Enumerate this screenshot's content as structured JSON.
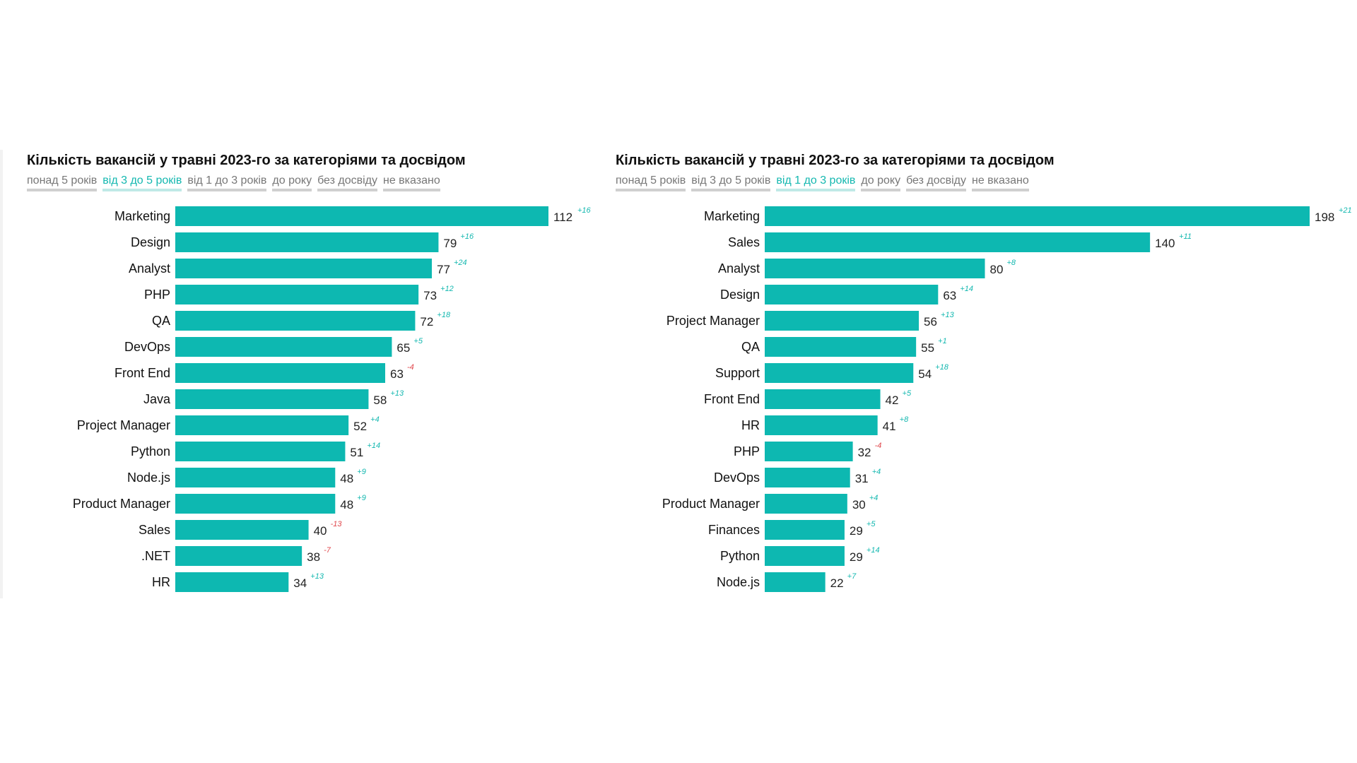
{
  "colors": {
    "bar": "#0db8b1",
    "delta_positive": "#14b8b0",
    "delta_negative": "#e0474c",
    "tab_active": "#14b8b0",
    "tab_inactive": "#777777"
  },
  "chart_data": [
    {
      "type": "bar",
      "orientation": "horizontal",
      "title": "Кількість вакансій у травні 2023-го за категоріями та досвідом",
      "tabs": [
        "понад 5 років",
        "від 3 до 5 років",
        "від 1 до 3 років",
        "до року",
        "без досвіду",
        "не вказано"
      ],
      "active_tab": 1,
      "categories": [
        "Marketing",
        "Design",
        "Analyst",
        "PHP",
        "QA",
        "DevOps",
        "Front End",
        "Java",
        "Project Manager",
        "Python",
        "Node.js",
        "Product Manager",
        "Sales",
        ".NET",
        "HR"
      ],
      "values": [
        112,
        79,
        77,
        73,
        72,
        65,
        63,
        58,
        52,
        51,
        48,
        48,
        40,
        38,
        34
      ],
      "deltas": [
        "+16",
        "+16",
        "+24",
        "+12",
        "+18",
        "+5",
        "-4",
        "+13",
        "+4",
        "+14",
        "+9",
        "+9",
        "-13",
        "-7",
        "+13"
      ],
      "xlim": [
        0,
        112
      ],
      "grid": false
    },
    {
      "type": "bar",
      "orientation": "horizontal",
      "title": "Кількість вакансій у травні 2023-го за категоріями та досвідом",
      "tabs": [
        "понад 5 років",
        "від 3 до 5 років",
        "від 1 до 3 років",
        "до року",
        "без досвіду",
        "не вказано"
      ],
      "active_tab": 2,
      "categories": [
        "Marketing",
        "Sales",
        "Analyst",
        "Design",
        "Project Manager",
        "QA",
        "Support",
        "Front End",
        "HR",
        "PHP",
        "DevOps",
        "Product Manager",
        "Finances",
        "Python",
        "Node.js"
      ],
      "values": [
        198,
        140,
        80,
        63,
        56,
        55,
        54,
        42,
        41,
        32,
        31,
        30,
        29,
        29,
        22
      ],
      "deltas": [
        "+21",
        "+11",
        "+8",
        "+14",
        "+13",
        "+1",
        "+18",
        "+5",
        "+8",
        "-4",
        "+4",
        "+4",
        "+5",
        "+14",
        "+7"
      ],
      "xlim": [
        0,
        198
      ],
      "grid": false
    }
  ]
}
